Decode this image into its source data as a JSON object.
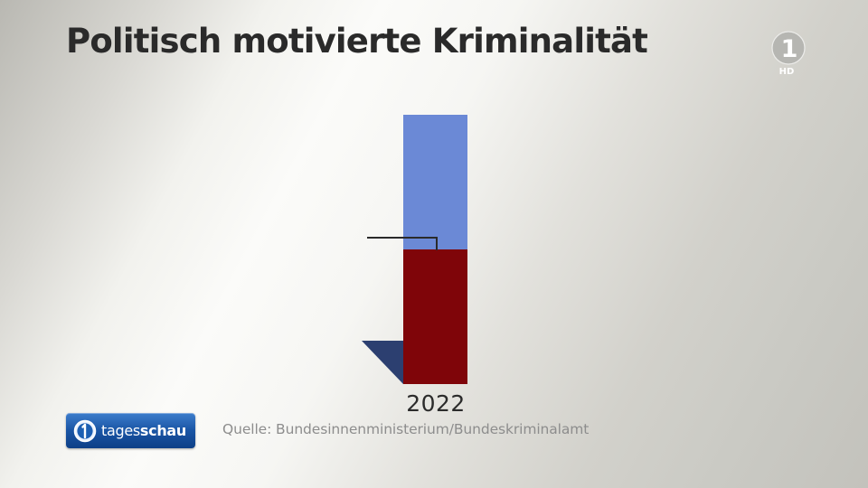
{
  "title": "Politisch motivierte Kriminalität",
  "broadcaster_logo": {
    "icon": "ard-das-erste-logo",
    "label": "1",
    "badge": "HD"
  },
  "chart_data": {
    "type": "bar",
    "stacked": true,
    "categories": [
      "2022"
    ],
    "series": [
      {
        "color": "#7f0509",
        "values": [
          7
        ]
      },
      {
        "color": "#6b89d6",
        "values": [
          7
        ]
      }
    ],
    "ylim": [
      0,
      14
    ],
    "annotations": [
      "pointer-line-at-lower-segment"
    ],
    "source": "Quelle: Bundesinnenministerium/Bundeskriminalamt"
  },
  "footer": {
    "brand_icon": "tagesschau-globe-icon",
    "brand_light": "tages",
    "brand_bold": "schau"
  },
  "colors": {
    "bar_lower": "#7f0509",
    "bar_upper": "#6b89d6",
    "shadow": "#2c3f70",
    "title": "#2a2a2a",
    "source": "#8d8d8d"
  }
}
